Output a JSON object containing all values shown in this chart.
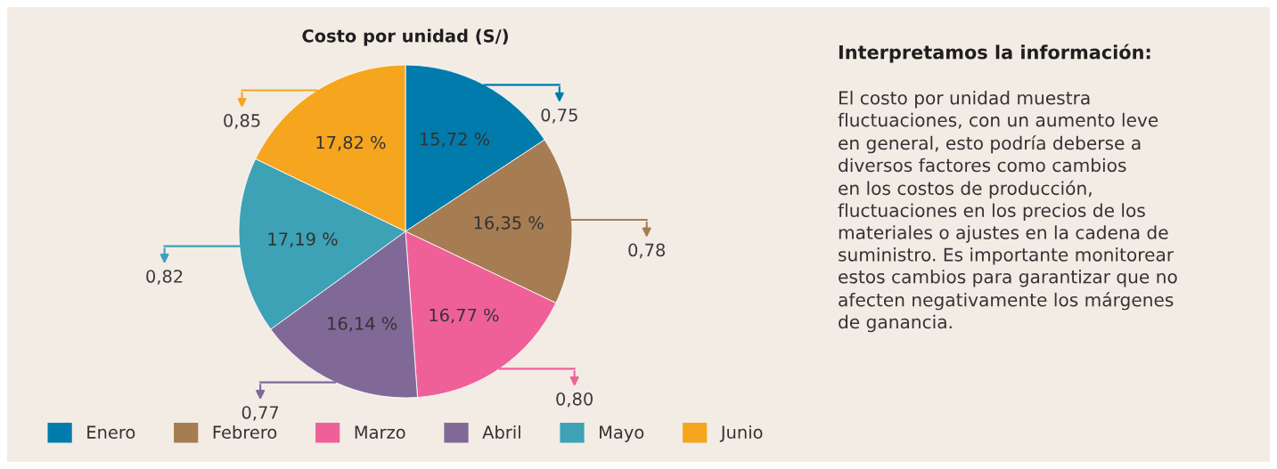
{
  "chart_data": {
    "type": "pie",
    "title": "Costo por unidad (S/)",
    "categories": [
      "Enero",
      "Febrero",
      "Marzo",
      "Abril",
      "Mayo",
      "Junio"
    ],
    "values": [
      0.75,
      0.78,
      0.8,
      0.77,
      0.82,
      0.85
    ],
    "value_labels": [
      "0,75",
      "0,78",
      "0,80",
      "0,77",
      "0,82",
      "0,85"
    ],
    "colors": [
      "#007bab",
      "#a67c52",
      "#ef6099",
      "#816997",
      "#3ea2b6",
      "#f6a51f"
    ],
    "legend": "bottom",
    "annotations": [
      {
        "text": "15,72 %",
        "x": "Enero"
      },
      {
        "text": "16,35 %",
        "x": "Febrero"
      },
      {
        "text": "16,77 %",
        "x": "Marzo"
      },
      {
        "text": "16,14 %",
        "x": "Abril"
      },
      {
        "text": "17,19 %",
        "x": "Mayo"
      },
      {
        "text": "17,82 %",
        "x": "Junio"
      },
      "Interpretamos la información:",
      "El costo por unidad muestra\nfluctuaciones, con un aumento leve\nen general, esto podría deberse a\ndiversos factores como cambios\nen los costos de producción,\nfluctuaciones en los precios de los\nmateriales o ajustes en la cadena de\nsuministro. Es importante monitorear\nestos cambios para garantizar que no\nafecten negativamente los márgenes\nde ganancia."
    ]
  }
}
